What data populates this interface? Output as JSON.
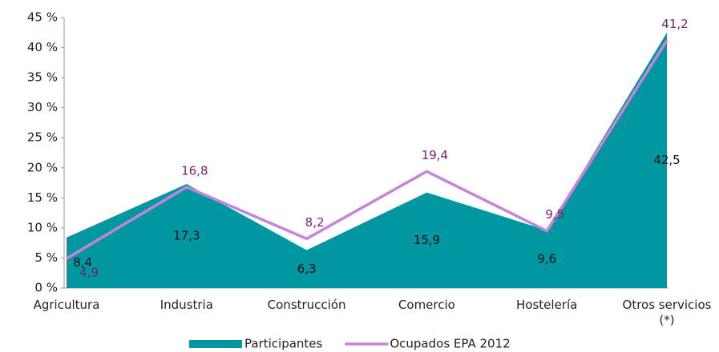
{
  "chart_data": {
    "type": "area",
    "categories": [
      "Agricultura",
      "Industria",
      "Construcción",
      "Comercio",
      "Hostelería",
      "Otros servicios (*)"
    ],
    "series": [
      {
        "name": "Participantes",
        "type": "area",
        "color": "#0096a2",
        "label_color": "#111111",
        "values": [
          8.4,
          17.3,
          6.3,
          15.9,
          9.6,
          42.5
        ],
        "value_labels": [
          "8,4",
          "17,3",
          "6,3",
          "15,9",
          "9,6",
          "42,5"
        ]
      },
      {
        "name": "Ocupados EPA 2012",
        "type": "line",
        "color": "#c485d8",
        "label_color": "#7a1f6e",
        "values": [
          4.9,
          16.8,
          8.2,
          19.4,
          9.5,
          41.2
        ],
        "value_labels": [
          "4,9",
          "16,8",
          "8,2",
          "19,4",
          "9,5",
          "41,2"
        ]
      }
    ],
    "ylim": [
      0,
      45
    ],
    "yticks": [
      {
        "value": 0,
        "label": "0 %"
      },
      {
        "value": 5,
        "label": "5 %"
      },
      {
        "value": 10,
        "label": "10 %"
      },
      {
        "value": 15,
        "label": "15 %"
      },
      {
        "value": 20,
        "label": "20 %"
      },
      {
        "value": 25,
        "label": "25 %"
      },
      {
        "value": 30,
        "label": "30 %"
      },
      {
        "value": 35,
        "label": "35 %"
      },
      {
        "value": 40,
        "label": "40 %"
      },
      {
        "value": 45,
        "label": "45 %"
      }
    ],
    "grid": false,
    "legend": "bottom"
  }
}
